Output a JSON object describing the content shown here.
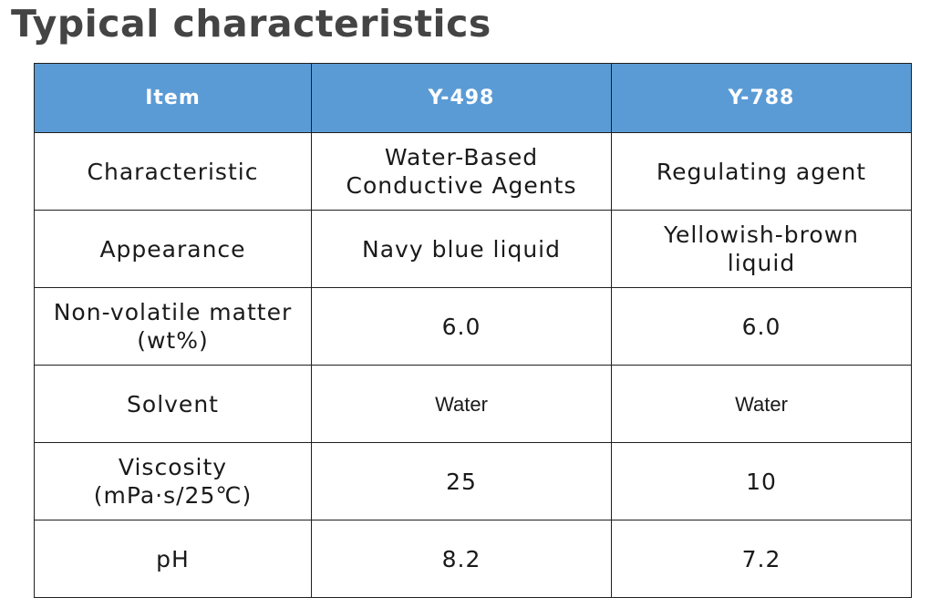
{
  "title": "Typical characteristics",
  "table": {
    "headers": [
      "Item",
      "Y-498",
      "Y-788"
    ],
    "rows": [
      {
        "item": [
          "Characteristic"
        ],
        "y498": [
          "Water-Based",
          "Conductive Agents"
        ],
        "y788": [
          "Regulating agent"
        ]
      },
      {
        "item": [
          "Appearance"
        ],
        "y498": [
          "Navy blue liquid"
        ],
        "y788": [
          "Yellowish-brown",
          "liquid"
        ]
      },
      {
        "item": [
          "Non-volatile matter",
          "(wt%)"
        ],
        "y498": [
          "6.0"
        ],
        "y788": [
          "6.0"
        ]
      },
      {
        "item": [
          "Solvent"
        ],
        "y498": [
          "Water"
        ],
        "y788": [
          "Water"
        ]
      },
      {
        "item": [
          "Viscosity",
          "(mPa·s/25℃)"
        ],
        "y498": [
          "25"
        ],
        "y788": [
          "10"
        ]
      },
      {
        "item": [
          "pH"
        ],
        "y498": [
          "8.2"
        ],
        "y788": [
          "7.2"
        ]
      }
    ]
  }
}
